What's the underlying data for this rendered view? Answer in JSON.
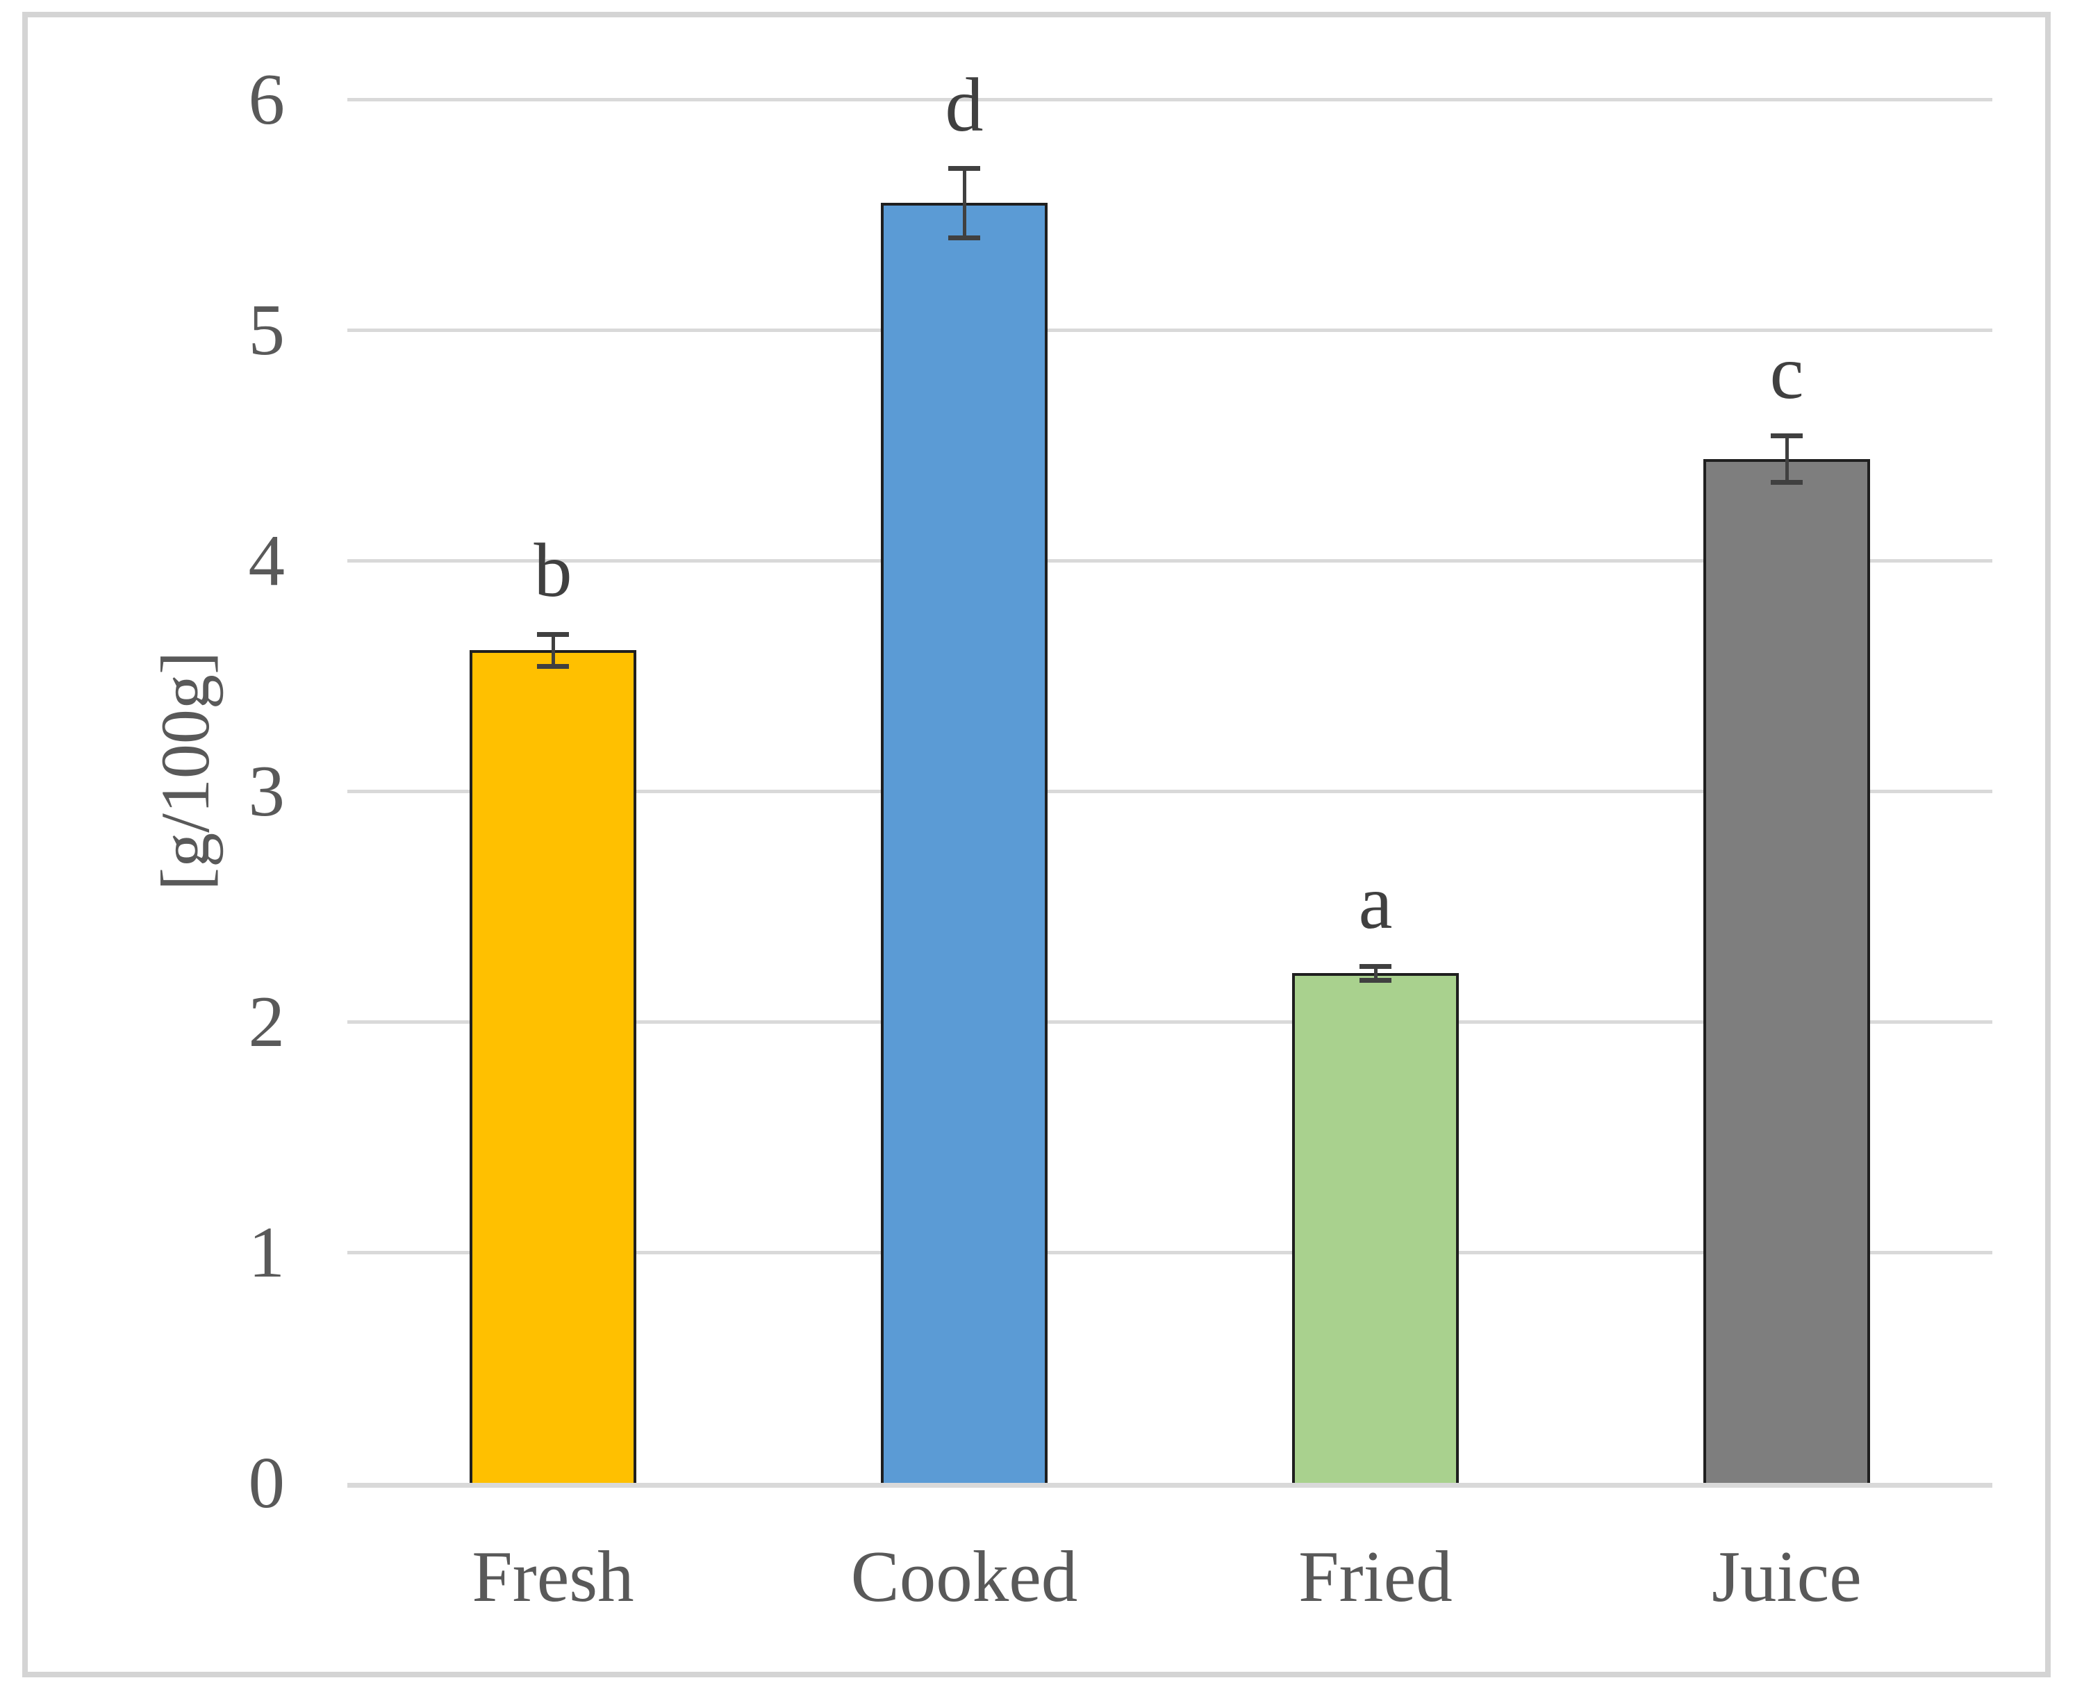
{
  "chart_data": {
    "type": "bar",
    "title": "",
    "xlabel": "",
    "ylabel": "[g/100g]",
    "categories": [
      "Fresh",
      "Cooked",
      "Fried",
      "Juice"
    ],
    "values": [
      3.61,
      5.55,
      2.21,
      4.44
    ],
    "error_bars": [
      0.07,
      0.15,
      0.03,
      0.1
    ],
    "significance_letters": [
      "b",
      "d",
      "a",
      "c"
    ],
    "bar_colors": [
      "#FFC000",
      "#5B9BD5",
      "#A9D18E",
      "#7E7E7E"
    ],
    "bar_border_color": "#1F1F1F",
    "error_bar_color": "#404040",
    "ylim": [
      0,
      6
    ],
    "yticks": [
      0,
      1,
      2,
      3,
      4,
      5,
      6
    ],
    "grid": "horizontal-gridlines",
    "gridline_color": "#D9D9D9",
    "axis_line_color": "#D9D9D9",
    "tick_label_color": "#595959",
    "letter_color": "#404040",
    "frame_border_color": "#D4D4D4",
    "legend": "none"
  }
}
